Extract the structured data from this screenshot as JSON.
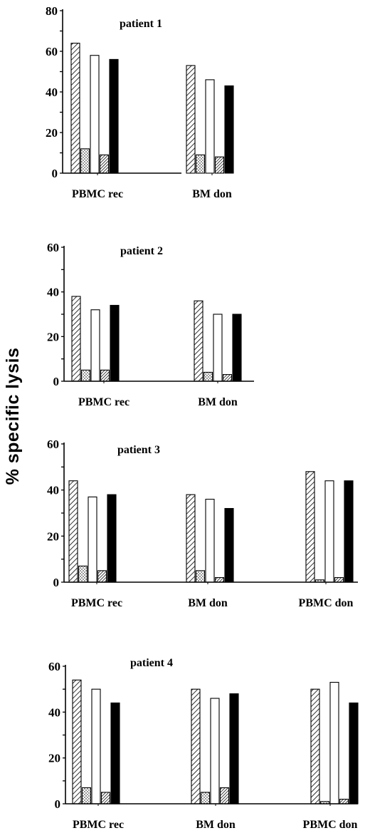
{
  "ylabel": "% specific lysis",
  "chart_data": [
    {
      "type": "bar",
      "title": "patient 1",
      "ylim": [
        0,
        80
      ],
      "yticks": [
        0,
        20,
        40,
        60,
        80
      ],
      "categories": [
        "PBMC rec",
        "BM don"
      ],
      "series": [
        {
          "pattern": "diag-hatch",
          "values": [
            64,
            53
          ]
        },
        {
          "pattern": "dots",
          "values": [
            12,
            9
          ]
        },
        {
          "pattern": "white",
          "values": [
            58,
            46
          ]
        },
        {
          "pattern": "dense-hatch",
          "values": [
            9,
            8
          ]
        },
        {
          "pattern": "black",
          "values": [
            56,
            43
          ]
        }
      ]
    },
    {
      "type": "bar",
      "title": "patient 2",
      "ylim": [
        0,
        60
      ],
      "yticks": [
        0,
        20,
        40,
        60
      ],
      "categories": [
        "PBMC rec",
        "BM don"
      ],
      "series": [
        {
          "pattern": "diag-hatch",
          "values": [
            38,
            36
          ]
        },
        {
          "pattern": "dots",
          "values": [
            5,
            4
          ]
        },
        {
          "pattern": "white",
          "values": [
            32,
            30
          ]
        },
        {
          "pattern": "dense-hatch",
          "values": [
            5,
            3
          ]
        },
        {
          "pattern": "black",
          "values": [
            34,
            30
          ]
        }
      ]
    },
    {
      "type": "bar",
      "title": "patient 3",
      "ylim": [
        0,
        60
      ],
      "yticks": [
        0,
        20,
        40,
        60
      ],
      "categories": [
        "PBMC rec",
        "BM don",
        "PBMC don"
      ],
      "series": [
        {
          "pattern": "diag-hatch",
          "values": [
            44,
            38,
            48
          ]
        },
        {
          "pattern": "dots",
          "values": [
            7,
            5,
            1
          ]
        },
        {
          "pattern": "white",
          "values": [
            37,
            36,
            44
          ]
        },
        {
          "pattern": "dense-hatch",
          "values": [
            5,
            2,
            2
          ]
        },
        {
          "pattern": "black",
          "values": [
            38,
            32,
            44
          ]
        }
      ]
    },
    {
      "type": "bar",
      "title": "patient 4",
      "ylim": [
        0,
        60
      ],
      "yticks": [
        0,
        20,
        40,
        60
      ],
      "categories": [
        "PBMC rec",
        "BM don",
        "PBMC don"
      ],
      "series": [
        {
          "pattern": "diag-hatch",
          "values": [
            54,
            50,
            50
          ]
        },
        {
          "pattern": "dots",
          "values": [
            7,
            5,
            1
          ]
        },
        {
          "pattern": "white",
          "values": [
            50,
            46,
            53
          ]
        },
        {
          "pattern": "dense-hatch",
          "values": [
            5,
            7,
            2
          ]
        },
        {
          "pattern": "black",
          "values": [
            44,
            48,
            44
          ]
        }
      ]
    }
  ]
}
